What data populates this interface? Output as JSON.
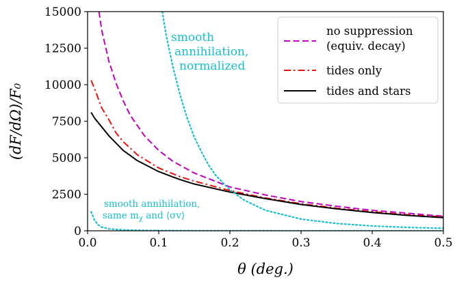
{
  "chart_data": {
    "type": "line",
    "xlabel": "θ (deg.)",
    "ylabel": "(dF/dΩ)/F₀",
    "xlim": [
      0,
      0.5
    ],
    "ylim": [
      0,
      15000
    ],
    "x_ticks": [
      {
        "value": 0.0,
        "label": "0.0"
      },
      {
        "value": 0.1,
        "label": "0.1"
      },
      {
        "value": 0.2,
        "label": "0.2"
      },
      {
        "value": 0.3,
        "label": "0.3"
      },
      {
        "value": 0.4,
        "label": "0.4"
      },
      {
        "value": 0.5,
        "label": "0.5"
      }
    ],
    "y_ticks": [
      {
        "value": 0,
        "label": "0"
      },
      {
        "value": 2500,
        "label": "2500"
      },
      {
        "value": 5000,
        "label": "5000"
      },
      {
        "value": 7500,
        "label": "7500"
      },
      {
        "value": 10000,
        "label": "10000"
      },
      {
        "value": 12500,
        "label": "12500"
      },
      {
        "value": 15000,
        "label": "15000"
      }
    ],
    "grid": false,
    "legend_position": "top-right",
    "series": [
      {
        "name": "no suppression (equiv. decay)",
        "legend_lines": [
          "no suppression",
          "(equiv. decay)"
        ],
        "color": "#bf00bf",
        "style": "dashed",
        "x": [
          0.016,
          0.02,
          0.03,
          0.04,
          0.05,
          0.06,
          0.08,
          0.1,
          0.12,
          0.15,
          0.2,
          0.25,
          0.3,
          0.35,
          0.4,
          0.45,
          0.5
        ],
        "y": [
          15000,
          13700,
          11600,
          10100,
          8900,
          7900,
          6500,
          5500,
          4750,
          3950,
          3000,
          2450,
          2000,
          1680,
          1400,
          1200,
          1000
        ]
      },
      {
        "name": "tides only",
        "legend_lines": [
          "tides only"
        ],
        "color": "#e8120c",
        "style": "dashdot",
        "x": [
          0.005,
          0.01,
          0.02,
          0.03,
          0.04,
          0.05,
          0.07,
          0.1,
          0.13,
          0.15,
          0.2,
          0.25,
          0.3,
          0.35,
          0.4,
          0.45,
          0.5
        ],
        "y": [
          10300,
          9700,
          8400,
          7600,
          6700,
          6100,
          5200,
          4300,
          3700,
          3400,
          2750,
          2250,
          1850,
          1550,
          1300,
          1100,
          950
        ]
      },
      {
        "name": "tides and stars",
        "legend_lines": [
          "tides and stars"
        ],
        "color": "#000000",
        "style": "solid",
        "x": [
          0.005,
          0.01,
          0.02,
          0.03,
          0.04,
          0.05,
          0.07,
          0.1,
          0.13,
          0.15,
          0.2,
          0.25,
          0.3,
          0.35,
          0.4,
          0.45,
          0.5
        ],
        "y": [
          8100,
          7700,
          7100,
          6500,
          6000,
          5500,
          4800,
          4050,
          3500,
          3200,
          2650,
          2200,
          1800,
          1500,
          1250,
          1050,
          900
        ]
      },
      {
        "name": "smooth annihilation, normalized",
        "legend_lines": [],
        "color": "#17becf",
        "style": "dotted",
        "x": [
          0.105,
          0.11,
          0.12,
          0.13,
          0.14,
          0.15,
          0.16,
          0.17,
          0.18,
          0.2,
          0.22,
          0.25,
          0.3,
          0.35,
          0.4,
          0.45,
          0.5
        ],
        "y": [
          15000,
          13500,
          11200,
          9300,
          7700,
          6400,
          5400,
          4500,
          3800,
          2800,
          2100,
          1400,
          800,
          500,
          330,
          230,
          170
        ]
      },
      {
        "name": "smooth annihilation, same m_χ and ⟨σv⟩",
        "legend_lines": [],
        "color": "#17becf",
        "style": "dotted",
        "x": [
          0.005,
          0.01,
          0.015,
          0.02,
          0.03,
          0.05,
          0.08,
          0.1,
          0.15,
          0.2,
          0.3,
          0.4,
          0.5
        ],
        "y": [
          1300,
          700,
          400,
          250,
          130,
          60,
          30,
          20,
          10,
          6,
          3,
          2,
          1
        ]
      }
    ],
    "annotations": {
      "normalized_lines": [
        "smooth",
        "annihilation,",
        "normalized"
      ],
      "same_lines": [
        "smooth annihilation,",
        "same m",
        "χ",
        " and ⟨σv⟩"
      ]
    }
  }
}
